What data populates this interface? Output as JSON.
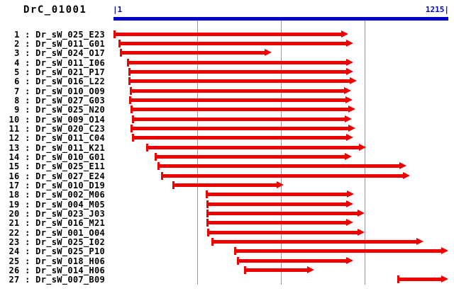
{
  "header": {
    "title": "DrC_01001",
    "scale_start_label": "|1",
    "scale_end_label": "1215|"
  },
  "colors": {
    "scale_bar_blue": "#0000CC",
    "arrow_red": "#EE0000",
    "gridline_gray": "#989898",
    "text_black": "#000000"
  },
  "chart_data": {
    "type": "bar",
    "subtype": "sequence-read-alignment-map",
    "title": "DrC_01001",
    "x_axis": {
      "min": 1,
      "max": 1215
    },
    "grid": "on",
    "gridline_positions": [
      304,
      608,
      911
    ],
    "label_separator": " : ",
    "reads": [
      {
        "num": "1",
        "name": "Dr_sW_025_E23",
        "start": 1,
        "end": 852
      },
      {
        "num": "2",
        "name": "Dr_sW_011_G01",
        "start": 19,
        "end": 870
      },
      {
        "num": "3",
        "name": "Dr_sW_024_O17",
        "start": 24,
        "end": 575
      },
      {
        "num": "4",
        "name": "Dr_sW_011_I06",
        "start": 50,
        "end": 870
      },
      {
        "num": "5",
        "name": "Dr_sW_021_P17",
        "start": 55,
        "end": 870
      },
      {
        "num": "6",
        "name": "Dr_sW_016_L22",
        "start": 55,
        "end": 883
      },
      {
        "num": "7",
        "name": "Dr_sW_010_O09",
        "start": 60,
        "end": 863
      },
      {
        "num": "8",
        "name": "Dr_sW_027_G03",
        "start": 58,
        "end": 868
      },
      {
        "num": "9",
        "name": "Dr_sW_025_N20",
        "start": 63,
        "end": 878
      },
      {
        "num": "10",
        "name": "Dr_sW_009_O14",
        "start": 68,
        "end": 866
      },
      {
        "num": "11",
        "name": "Dr_sW_020_C23",
        "start": 63,
        "end": 878
      },
      {
        "num": "12",
        "name": "Dr_sW_011_C04",
        "start": 68,
        "end": 870
      },
      {
        "num": "13",
        "name": "Dr_sW_011_K21",
        "start": 119,
        "end": 917
      },
      {
        "num": "14",
        "name": "Dr_sW_010_G01",
        "start": 150,
        "end": 866
      },
      {
        "num": "15",
        "name": "Dr_sW_025_E11",
        "start": 160,
        "end": 1063
      },
      {
        "num": "16",
        "name": "Dr_sW_027_E24",
        "start": 173,
        "end": 1076
      },
      {
        "num": "17",
        "name": "Dr_sW_010_D19",
        "start": 214,
        "end": 618
      },
      {
        "num": "18",
        "name": "Dr_sW_002_M06",
        "start": 335,
        "end": 873
      },
      {
        "num": "19",
        "name": "Dr_sW_004_M05",
        "start": 338,
        "end": 870
      },
      {
        "num": "20",
        "name": "Dr_sW_023_J03",
        "start": 338,
        "end": 911
      },
      {
        "num": "21",
        "name": "Dr_sW_016_M21",
        "start": 338,
        "end": 870
      },
      {
        "num": "22",
        "name": "Dr_sW_001_O04",
        "start": 340,
        "end": 911
      },
      {
        "num": "23",
        "name": "Dr_sW_025_I02",
        "start": 356,
        "end": 1125
      },
      {
        "num": "24",
        "name": "Dr_sW_025_P10",
        "start": 438,
        "end": 1215
      },
      {
        "num": "25",
        "name": "Dr_sW_018_H06",
        "start": 448,
        "end": 870
      },
      {
        "num": "26",
        "name": "Dr_sW_014_H06",
        "start": 474,
        "end": 729
      },
      {
        "num": "27",
        "name": "Dr_sW_007_B09",
        "start": 1030,
        "end": 1215
      }
    ]
  }
}
